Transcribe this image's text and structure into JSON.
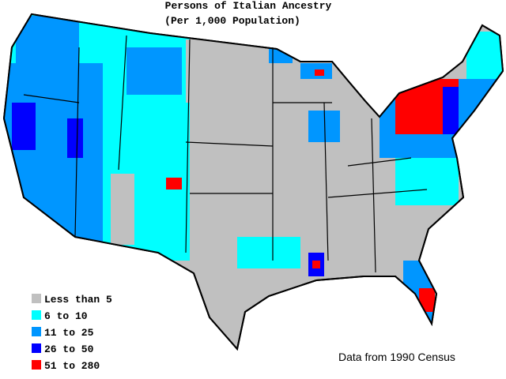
{
  "title": "Persons of Italian Ancestry",
  "subtitle": "(Per 1,000 Population)",
  "legend": [
    {
      "label": "Less than 5",
      "color": "#c0c0c0"
    },
    {
      "label": "6 to 10",
      "color": "#00ffff"
    },
    {
      "label": "11 to 25",
      "color": "#0096ff"
    },
    {
      "label": "26 to 50",
      "color": "#0000ff"
    },
    {
      "label": "51 to 280",
      "color": "#ff0000"
    }
  ],
  "source": "Data from 1990 Census"
}
